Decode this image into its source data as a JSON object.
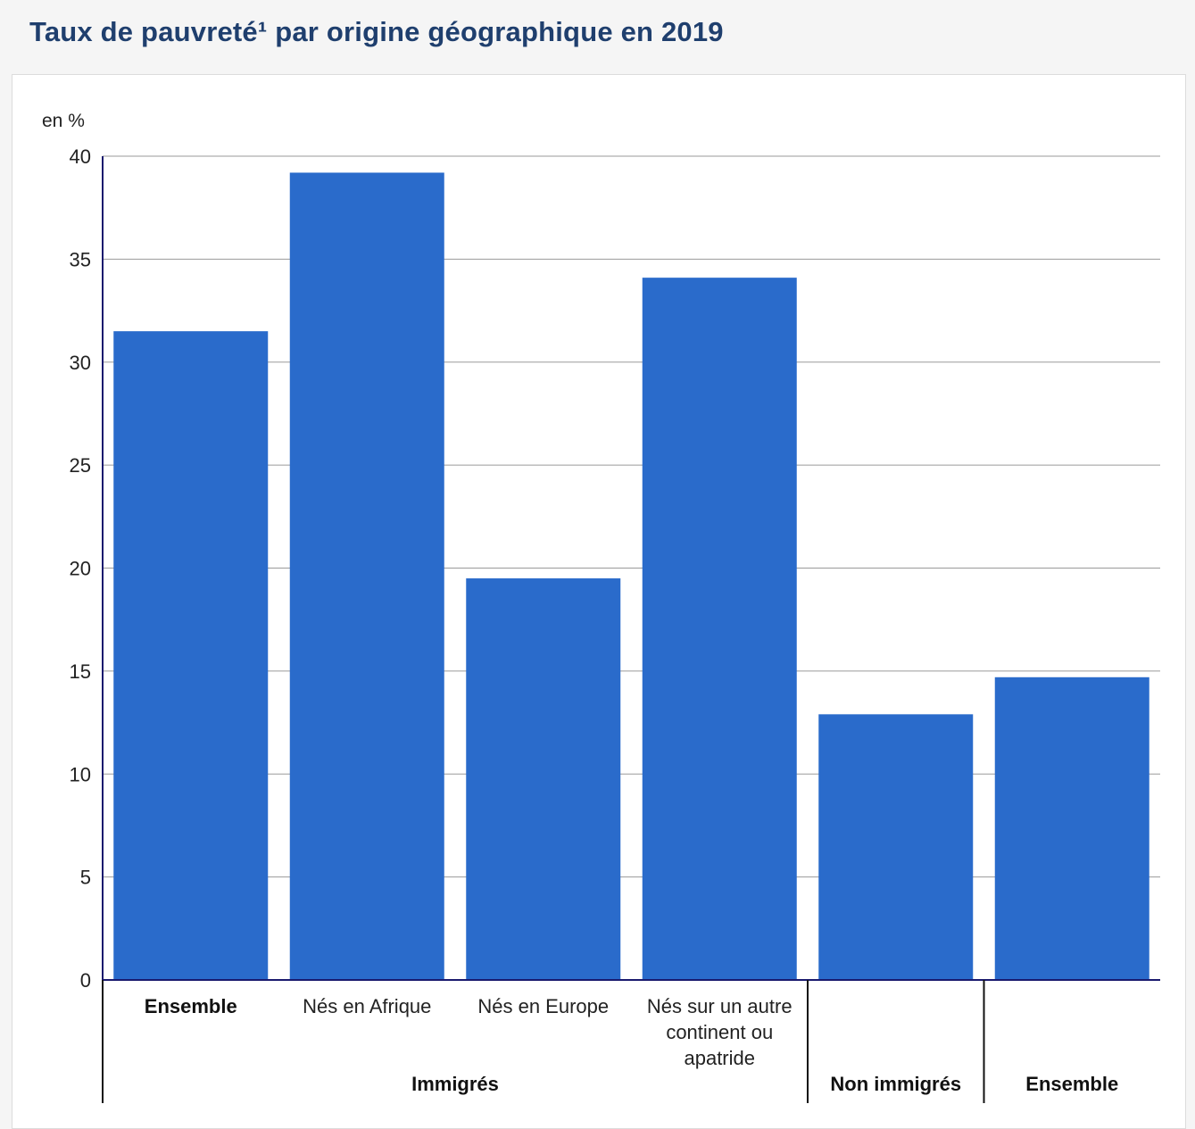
{
  "title": "Taux de pauvreté¹ par origine géographique en 2019",
  "chart_data": {
    "type": "bar",
    "unit_label": "en %",
    "ylim": [
      0,
      40
    ],
    "yticks": [
      0,
      5,
      10,
      15,
      20,
      25,
      30,
      35,
      40
    ],
    "grid": true,
    "bar_color": "#2a6bcb",
    "categories": [
      {
        "label": [
          "Ensemble"
        ],
        "bold": true,
        "value": 31.5
      },
      {
        "label": [
          "Nés en Afrique"
        ],
        "bold": false,
        "value": 39.2
      },
      {
        "label": [
          "Nés en Europe"
        ],
        "bold": false,
        "value": 19.5
      },
      {
        "label": [
          "Nés sur un autre",
          "continent ou",
          "apatride"
        ],
        "bold": false,
        "value": 34.1
      },
      {
        "label": [
          ""
        ],
        "bold": false,
        "value": 12.9
      },
      {
        "label": [
          ""
        ],
        "bold": false,
        "value": 14.7
      }
    ],
    "groups": [
      {
        "label": "Immigrés",
        "span": [
          0,
          3
        ]
      },
      {
        "label": "Non immigrés",
        "span": [
          4,
          4
        ]
      },
      {
        "label": "Ensemble",
        "span": [
          5,
          5
        ]
      }
    ]
  }
}
